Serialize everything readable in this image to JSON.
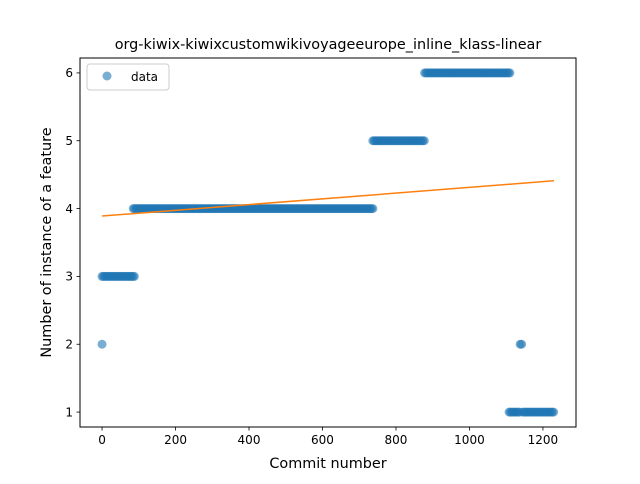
{
  "chart_data": {
    "type": "scatter",
    "title": "org-kiwix-kiwixcustomwikivoyageeurope_inline_klass-linear",
    "xlabel": "Commit number",
    "ylabel": "Number of instance of a feature",
    "xlim": [
      -60,
      1290
    ],
    "ylim": [
      0.78,
      6.22
    ],
    "x_ticks": [
      0,
      200,
      400,
      600,
      800,
      1000,
      1200
    ],
    "y_ticks": [
      1,
      2,
      3,
      4,
      5,
      6
    ],
    "grid": false,
    "legend": {
      "position": "top-left",
      "entries": [
        "data"
      ]
    },
    "colors": {
      "data": "#1f77b4",
      "fit": "#ff7f0e"
    },
    "series": [
      {
        "name": "data",
        "kind": "points",
        "segments": [
          {
            "x_start": 0,
            "x_end": 0,
            "y": 2
          },
          {
            "x_start": 0,
            "x_end": 90,
            "y": 3
          },
          {
            "x_start": 85,
            "x_end": 737,
            "y": 4
          },
          {
            "x_start": 737,
            "x_end": 878,
            "y": 5
          },
          {
            "x_start": 878,
            "x_end": 1112,
            "y": 6
          },
          {
            "x_start": 1108,
            "x_end": 1138,
            "y": 1
          },
          {
            "x_start": 1138,
            "x_end": 1145,
            "y": 2
          },
          {
            "x_start": 1145,
            "x_end": 1230,
            "y": 1
          }
        ]
      },
      {
        "kind": "linear-fit",
        "points": [
          [
            0,
            3.89
          ],
          [
            1230,
            4.41
          ]
        ]
      }
    ]
  }
}
